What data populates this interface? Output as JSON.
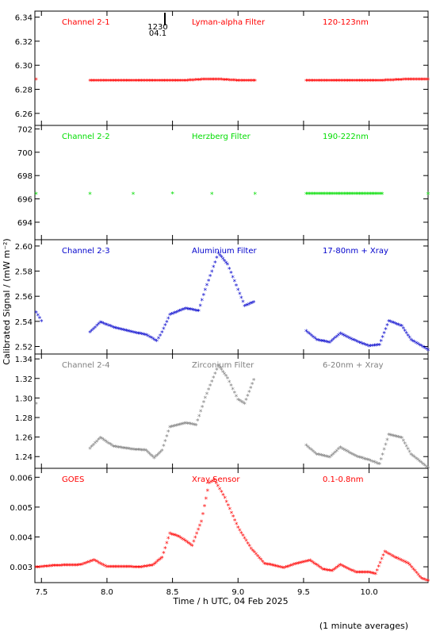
{
  "chart_data": {
    "type": "scatter",
    "shared_x": {
      "label": "Time / h UTC, 04 Feb 2025",
      "range": [
        7.45,
        10.45
      ],
      "ticks": [
        "7.5",
        "8.0",
        "8.5",
        "9.0",
        "9.5",
        "10.0"
      ]
    },
    "ylabel": "Calibrated Signal / (mW m⁻²)",
    "footnote": "(1 minute averages)",
    "marker_label": {
      "line1": "1230",
      "line2": "04.1",
      "x": 8.48
    },
    "panels": [
      {
        "name": "Channel 2-1",
        "filter": "Lyman-alpha Filter",
        "band": "120-123nm",
        "color": "#ff0000",
        "ylim": [
          6.25,
          6.345
        ],
        "yticks": [
          "6.26",
          "6.28",
          "6.30",
          "6.32",
          "6.34"
        ],
        "points": [
          [
            7.46,
            6.288
          ],
          [
            7.87,
            6.287
          ],
          [
            8.0,
            6.287
          ],
          [
            8.2,
            6.287
          ],
          [
            8.4,
            6.287
          ],
          [
            8.6,
            6.287
          ],
          [
            8.75,
            6.288
          ],
          [
            8.85,
            6.288
          ],
          [
            9.0,
            6.287
          ],
          [
            9.13,
            6.287
          ],
          [
            9.52,
            6.287
          ],
          [
            9.7,
            6.287
          ],
          [
            9.9,
            6.287
          ],
          [
            10.1,
            6.287
          ],
          [
            10.3,
            6.288
          ],
          [
            10.45,
            6.288
          ]
        ]
      },
      {
        "name": "Channel 2-2",
        "filter": "Herzberg Filter",
        "band": "190-222nm",
        "color": "#00dd00",
        "ylim": [
          692.5,
          702.3
        ],
        "yticks": [
          "694",
          "696",
          "698",
          "700",
          "702"
        ],
        "points": [
          [
            7.46,
            696.4
          ],
          [
            7.87,
            696.4
          ],
          [
            8.2,
            696.4
          ],
          [
            8.5,
            696.45
          ],
          [
            8.8,
            696.4
          ],
          [
            9.13,
            696.4
          ],
          [
            9.52,
            696.4
          ],
          [
            9.8,
            696.4
          ],
          [
            10.1,
            696.4
          ],
          [
            10.45,
            696.4
          ]
        ]
      },
      {
        "name": "Channel 2-3",
        "filter": "Aluminium Filter",
        "band": "17-80nm + Xray",
        "color": "#0000cc",
        "ylim": [
          2.514,
          2.605
        ],
        "yticks": [
          "2.52",
          "2.54",
          "2.56",
          "2.58",
          "2.60"
        ],
        "points": [
          [
            7.46,
            2.547
          ],
          [
            7.5,
            2.54
          ],
          [
            7.87,
            2.531
          ],
          [
            7.95,
            2.539
          ],
          [
            8.05,
            2.535
          ],
          [
            8.2,
            2.531
          ],
          [
            8.3,
            2.529
          ],
          [
            8.38,
            2.524
          ],
          [
            8.42,
            2.531
          ],
          [
            8.48,
            2.545
          ],
          [
            8.6,
            2.55
          ],
          [
            8.7,
            2.548
          ],
          [
            8.75,
            2.565
          ],
          [
            8.85,
            2.594
          ],
          [
            8.92,
            2.585
          ],
          [
            9.0,
            2.565
          ],
          [
            9.05,
            2.552
          ],
          [
            9.12,
            2.555
          ],
          [
            9.52,
            2.532
          ],
          [
            9.6,
            2.525
          ],
          [
            9.7,
            2.523
          ],
          [
            9.78,
            2.53
          ],
          [
            9.9,
            2.524
          ],
          [
            10.0,
            2.52
          ],
          [
            10.08,
            2.521
          ],
          [
            10.15,
            2.54
          ],
          [
            10.25,
            2.536
          ],
          [
            10.32,
            2.525
          ],
          [
            10.45,
            2.517
          ]
        ]
      },
      {
        "name": "Channel 2-4",
        "filter": "Zirconium Filter",
        "band": "6-20nm + Xray",
        "color": "#808080",
        "ylim": [
          1.228,
          1.345
        ],
        "yticks": [
          "1.24",
          "1.26",
          "1.28",
          "1.30",
          "1.32",
          "1.34"
        ],
        "points": [
          [
            7.46,
            1.294
          ],
          [
            7.87,
            1.248
          ],
          [
            7.95,
            1.259
          ],
          [
            8.05,
            1.25
          ],
          [
            8.2,
            1.247
          ],
          [
            8.3,
            1.246
          ],
          [
            8.36,
            1.238
          ],
          [
            8.42,
            1.246
          ],
          [
            8.48,
            1.27
          ],
          [
            8.6,
            1.274
          ],
          [
            8.68,
            1.272
          ],
          [
            8.75,
            1.3
          ],
          [
            8.85,
            1.333
          ],
          [
            8.92,
            1.32
          ],
          [
            9.0,
            1.298
          ],
          [
            9.05,
            1.294
          ],
          [
            9.12,
            1.318
          ],
          [
            9.52,
            1.251
          ],
          [
            9.6,
            1.242
          ],
          [
            9.7,
            1.239
          ],
          [
            9.78,
            1.249
          ],
          [
            9.9,
            1.24
          ],
          [
            10.0,
            1.236
          ],
          [
            10.08,
            1.232
          ],
          [
            10.15,
            1.262
          ],
          [
            10.25,
            1.259
          ],
          [
            10.32,
            1.242
          ],
          [
            10.45,
            1.228
          ]
        ]
      },
      {
        "name": "GOES",
        "filter": "Xray Sensor",
        "band": "0.1-0.8nm",
        "color": "#ff0000",
        "ylim": [
          0.00247,
          0.0063
        ],
        "yticks": [
          "0.003",
          "0.004",
          "0.005",
          "0.006"
        ],
        "points": [
          [
            7.46,
            0.00297
          ],
          [
            7.6,
            0.00303
          ],
          [
            7.8,
            0.00305
          ],
          [
            7.9,
            0.00321
          ],
          [
            8.0,
            0.00299
          ],
          [
            8.15,
            0.00299
          ],
          [
            8.25,
            0.00297
          ],
          [
            8.35,
            0.00304
          ],
          [
            8.42,
            0.0033
          ],
          [
            8.48,
            0.0041
          ],
          [
            8.55,
            0.004
          ],
          [
            8.65,
            0.0037
          ],
          [
            8.72,
            0.0045
          ],
          [
            8.78,
            0.0058
          ],
          [
            8.82,
            0.0059
          ],
          [
            8.9,
            0.0053
          ],
          [
            9.0,
            0.0043
          ],
          [
            9.1,
            0.0036
          ],
          [
            9.2,
            0.0031
          ],
          [
            9.35,
            0.00295
          ],
          [
            9.45,
            0.0031
          ],
          [
            9.55,
            0.0032
          ],
          [
            9.65,
            0.0029
          ],
          [
            9.72,
            0.00285
          ],
          [
            9.78,
            0.00305
          ],
          [
            9.9,
            0.0028
          ],
          [
            10.0,
            0.0028
          ],
          [
            10.05,
            0.00275
          ],
          [
            10.12,
            0.0035
          ],
          [
            10.2,
            0.0033
          ],
          [
            10.3,
            0.0031
          ],
          [
            10.4,
            0.0026
          ],
          [
            10.45,
            0.00252
          ]
        ]
      }
    ]
  }
}
